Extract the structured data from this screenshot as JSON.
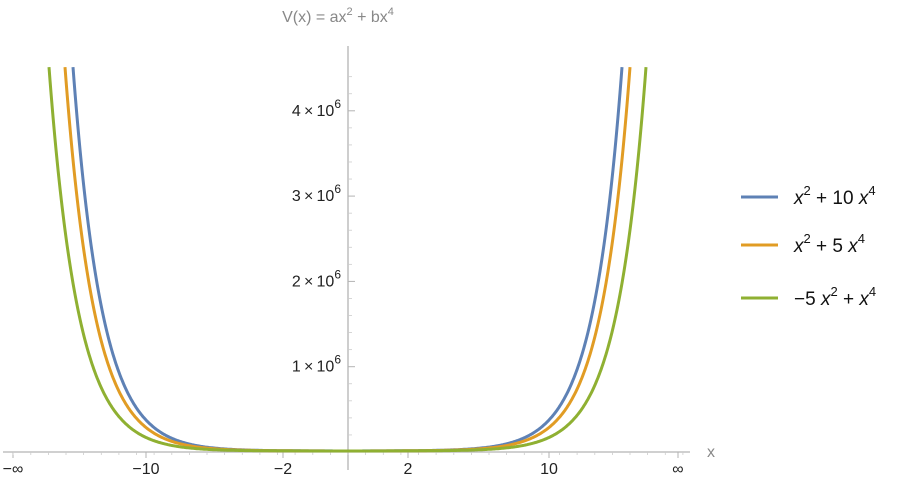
{
  "chart_data": {
    "type": "line",
    "title": "V(x) = ax² + bx⁴",
    "xlabel": "x",
    "ylabel": "",
    "x_ticks": [
      "−∞",
      "−10",
      "−2",
      "2",
      "10",
      "∞"
    ],
    "y_ticks": [
      {
        "mantissa": "1",
        "exponent": "6",
        "value": 1000000
      },
      {
        "mantissa": "2",
        "exponent": "6",
        "value": 2000000
      },
      {
        "mantissa": "3",
        "exponent": "6",
        "value": 3000000
      },
      {
        "mantissa": "4",
        "exponent": "6",
        "value": 4000000
      }
    ],
    "ylim": [
      0,
      4500000
    ],
    "x_scale": "compressed (tick labels −∞, −10, −2, 2, 10, ∞)",
    "grid": false,
    "legend_position": "right",
    "series": [
      {
        "key": "s1",
        "a": 1,
        "b": 10,
        "color": "#5E81B5",
        "legend": {
          "parts": [
            "x",
            "2",
            " + 10 ",
            "x",
            "4"
          ]
        }
      },
      {
        "key": "s2",
        "a": 1,
        "b": 5,
        "color": "#E19C24",
        "legend": {
          "parts": [
            "x",
            "2",
            " + 5 ",
            "x",
            "4"
          ]
        }
      },
      {
        "key": "s3",
        "a": -5,
        "b": 1,
        "color": "#8FB032",
        "legend": {
          "parts": [
            "−5 ",
            "x",
            "2",
            " + ",
            "x",
            "4"
          ]
        }
      }
    ]
  }
}
